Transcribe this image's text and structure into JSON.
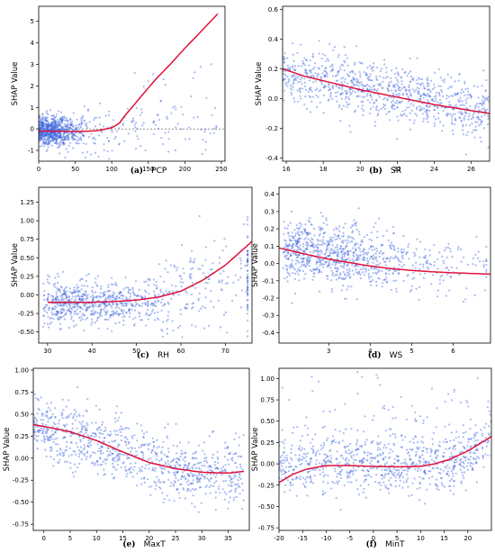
{
  "chart_data": [
    {
      "type": "scatter",
      "panel": "a",
      "caption_letter": "(a)",
      "caption_var": "PCP",
      "ylabel": "SHAP Value",
      "xlim": [
        0,
        255
      ],
      "ylim": [
        -1.5,
        5.7
      ],
      "xticks": [
        0,
        50,
        100,
        150,
        200,
        250
      ],
      "yticks": [
        -1,
        0,
        1,
        2,
        3,
        4,
        5
      ],
      "reference_line_y": 0,
      "point_color": "#4169E1",
      "fit_color": "#E0103A",
      "fit_x": [
        0,
        20,
        40,
        60,
        80,
        100,
        110,
        120,
        140,
        160,
        180,
        200,
        220,
        245
      ],
      "fit_y": [
        -0.1,
        -0.1,
        -0.12,
        -0.12,
        -0.08,
        0.05,
        0.25,
        0.7,
        1.5,
        2.3,
        3.0,
        3.75,
        4.45,
        5.35
      ],
      "scatter_model": "fit"
    },
    {
      "type": "scatter",
      "panel": "b",
      "caption_letter": "(b)",
      "caption_var": "SR",
      "ylabel": "SHAP Value",
      "xlim": [
        15.8,
        27
      ],
      "ylim": [
        -0.42,
        0.62
      ],
      "xticks": [
        16,
        18,
        20,
        22,
        24,
        26
      ],
      "yticks": [
        -0.4,
        -0.2,
        0.0,
        0.2,
        0.4,
        0.6
      ],
      "point_color": "#4169E1",
      "fit_color": "#E0103A",
      "fit_x": [
        15.8,
        17,
        18,
        19,
        20,
        21,
        22,
        23,
        24,
        25,
        26,
        27
      ],
      "fit_y": [
        0.2,
        0.15,
        0.12,
        0.09,
        0.06,
        0.035,
        0.01,
        -0.015,
        -0.04,
        -0.06,
        -0.08,
        -0.1
      ],
      "scatter_model": "fit"
    },
    {
      "type": "scatter",
      "panel": "c",
      "caption_letter": "(c)",
      "caption_var": "RH",
      "ylabel": "SHAP Value",
      "xlim": [
        28,
        76
      ],
      "ylim": [
        -0.65,
        1.45
      ],
      "xticks": [
        30,
        40,
        50,
        60,
        70
      ],
      "yticks": [
        -0.5,
        -0.25,
        0.0,
        0.25,
        0.5,
        0.75,
        1.0,
        1.25
      ],
      "point_color": "#4169E1",
      "fit_color": "#E0103A",
      "fit_x": [
        30,
        35,
        40,
        45,
        50,
        55,
        60,
        65,
        70,
        76
      ],
      "fit_y": [
        -0.1,
        -0.1,
        -0.1,
        -0.09,
        -0.07,
        -0.03,
        0.05,
        0.2,
        0.4,
        0.72
      ],
      "scatter_model": "fit"
    },
    {
      "type": "scatter",
      "panel": "d",
      "caption_letter": "(d)",
      "caption_var": "WS",
      "ylabel": "SHAP Value",
      "xlim": [
        1.8,
        6.9
      ],
      "ylim": [
        -0.46,
        0.44
      ],
      "xticks": [
        3,
        4,
        5,
        6
      ],
      "yticks": [
        -0.4,
        -0.3,
        -0.2,
        -0.1,
        0.0,
        0.1,
        0.2,
        0.3,
        0.4
      ],
      "point_color": "#4169E1",
      "fit_color": "#E0103A",
      "fit_x": [
        1.8,
        2.5,
        3,
        3.5,
        4,
        4.5,
        5,
        5.5,
        6,
        6.5,
        6.9
      ],
      "fit_y": [
        0.09,
        0.05,
        0.025,
        0.005,
        -0.015,
        -0.03,
        -0.04,
        -0.048,
        -0.054,
        -0.058,
        -0.062
      ],
      "scatter_model": "fit"
    },
    {
      "type": "scatter",
      "panel": "e",
      "caption_letter": "(e)",
      "caption_var": "MaxT",
      "ylabel": "SHAP Value",
      "xlim": [
        -2,
        39
      ],
      "ylim": [
        -0.82,
        1.02
      ],
      "xticks": [
        0,
        5,
        10,
        15,
        20,
        25,
        30,
        35
      ],
      "yticks": [
        -0.75,
        -0.5,
        -0.25,
        0.0,
        0.25,
        0.5,
        0.75,
        1.0
      ],
      "point_color": "#4169E1",
      "fit_color": "#E0103A",
      "fit_x": [
        -2,
        0,
        5,
        10,
        15,
        20,
        25,
        30,
        35,
        38
      ],
      "fit_y": [
        0.38,
        0.36,
        0.3,
        0.2,
        0.07,
        -0.05,
        -0.12,
        -0.16,
        -0.17,
        -0.15
      ],
      "scatter_model": "fit"
    },
    {
      "type": "scatter",
      "panel": "f",
      "caption_letter": "(f)",
      "caption_var": "MinT",
      "ylabel": "SHAP Value",
      "xlim": [
        -20,
        25
      ],
      "ylim": [
        -0.78,
        1.12
      ],
      "xticks": [
        -20,
        -15,
        -10,
        -5,
        0,
        5,
        10,
        15,
        20
      ],
      "yticks": [
        -0.75,
        -0.5,
        -0.25,
        0.0,
        0.25,
        0.5,
        0.75,
        1.0
      ],
      "point_color": "#4169E1",
      "fit_color": "#E0103A",
      "fit_x": [
        -20,
        -17,
        -14,
        -10,
        -5,
        0,
        5,
        10,
        13,
        16,
        20,
        25
      ],
      "fit_y": [
        -0.22,
        -0.12,
        -0.06,
        -0.02,
        -0.02,
        -0.03,
        -0.035,
        -0.03,
        0.0,
        0.05,
        0.15,
        0.32
      ],
      "scatter_model": "fit"
    }
  ]
}
